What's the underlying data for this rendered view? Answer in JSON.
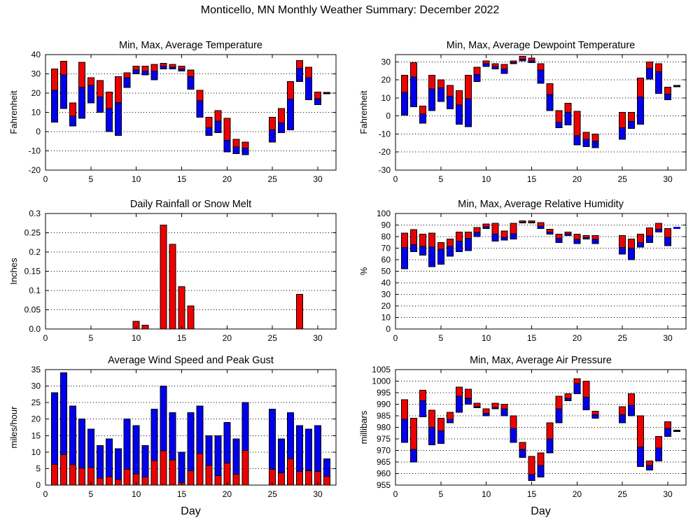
{
  "title": "Monticello, MN Monthly Weather Summary: December 2022",
  "colors": {
    "max_bar_red": "#ee0000",
    "min_bar_blue": "#0000ee",
    "dash_black": "#000000",
    "axis": "#000000",
    "background": "#ffffff"
  },
  "chart_data": [
    {
      "id": "temperature",
      "type": "bar",
      "bar_style": "min-avg-max range bars; blue = min to average, red = average to max",
      "title": "Min, Max, Average Temperature",
      "ylabel": "Fahrenheit",
      "xlabel": "",
      "ylim": [
        -20,
        40
      ],
      "yticks": [
        -20,
        -10,
        0,
        10,
        20,
        30,
        40
      ],
      "xlim": [
        0,
        32
      ],
      "xticks": [
        0,
        5,
        10,
        15,
        20,
        25,
        30
      ],
      "grid": true,
      "legend": "none",
      "days_min_avg_max": [
        [
          1,
          5,
          21.5,
          32.5
        ],
        [
          2,
          12,
          29.5,
          36.5
        ],
        [
          3,
          3,
          8,
          15
        ],
        [
          4,
          7,
          23,
          36
        ],
        [
          5,
          15,
          24,
          28
        ],
        [
          6,
          10,
          18,
          26.5
        ],
        [
          7,
          0,
          12,
          20.5
        ],
        [
          8,
          -2,
          15,
          28.5
        ],
        [
          9,
          23,
          28,
          30.5
        ],
        [
          10,
          30,
          32,
          34
        ],
        [
          11,
          29.5,
          31.5,
          34
        ],
        [
          12,
          27,
          31.5,
          35
        ],
        [
          13,
          32.5,
          34,
          35.5
        ],
        [
          14,
          32.5,
          33.5,
          35
        ],
        [
          15,
          31.5,
          32.5,
          34
        ],
        [
          16,
          22,
          28.5,
          32
        ],
        [
          17,
          7.5,
          16,
          21.5
        ],
        [
          18,
          -2,
          2,
          7.5
        ],
        [
          19,
          -0.5,
          5.5,
          11
        ],
        [
          20,
          -10.5,
          -4.5,
          7
        ],
        [
          21,
          -11.5,
          -8,
          -4
        ],
        [
          22,
          -12,
          -8.5,
          -5.5
        ],
        [
          25,
          -5.5,
          1,
          7.5
        ],
        [
          26,
          -0.5,
          4.5,
          12
        ],
        [
          27,
          1,
          17,
          26
        ],
        [
          28,
          26,
          33,
          37
        ],
        [
          29,
          16.5,
          28,
          33.5
        ],
        [
          30,
          14,
          17,
          20.5
        ]
      ],
      "dash_marks": [
        [
          31,
          20,
          "black"
        ]
      ],
      "missing_days": [
        23,
        24
      ]
    },
    {
      "id": "dewpoint",
      "type": "bar",
      "bar_style": "min-avg-max range bars; blue = min to average, red = average to max",
      "title": "Min, Max, Average Dewpoint Temperature",
      "ylabel": "Fahrenheit",
      "xlabel": "",
      "ylim": [
        -30,
        34
      ],
      "yticks": [
        -30,
        -20,
        -10,
        0,
        10,
        20,
        30
      ],
      "xlim": [
        0,
        32
      ],
      "xticks": [
        0,
        5,
        10,
        15,
        20,
        25,
        30
      ],
      "grid": true,
      "legend": "none",
      "days_min_avg_max": [
        [
          1,
          0.5,
          13,
          22.5
        ],
        [
          2,
          5,
          21.5,
          29.5
        ],
        [
          3,
          -4,
          1,
          5.5
        ],
        [
          4,
          3,
          15,
          22.5
        ],
        [
          5,
          8,
          15.5,
          20
        ],
        [
          6,
          4,
          11,
          17
        ],
        [
          7,
          -4.5,
          6,
          14
        ],
        [
          8,
          -6,
          9.5,
          22.5
        ],
        [
          9,
          19,
          23,
          27
        ],
        [
          10,
          27.5,
          29,
          30.5
        ],
        [
          11,
          26,
          27.5,
          29
        ],
        [
          12,
          23.5,
          26,
          28.5
        ],
        [
          13,
          29,
          29.5,
          30.5
        ],
        [
          14,
          30.5,
          31.5,
          33
        ],
        [
          15,
          29.5,
          30.5,
          32
        ],
        [
          16,
          18,
          25.5,
          29
        ],
        [
          17,
          3,
          12,
          18
        ],
        [
          18,
          -6.5,
          -3.5,
          3
        ],
        [
          19,
          -5,
          2,
          7
        ],
        [
          20,
          -16,
          -11,
          2.5
        ],
        [
          21,
          -17,
          -13,
          -9
        ],
        [
          22,
          -17.5,
          -14,
          -10
        ],
        [
          25,
          -13,
          -6.5,
          2
        ],
        [
          26,
          -7,
          -3,
          2
        ],
        [
          27,
          -4.5,
          10.5,
          21
        ],
        [
          28,
          20.5,
          26.5,
          30
        ],
        [
          29,
          12.5,
          24.5,
          29
        ],
        [
          30,
          9,
          12,
          16
        ]
      ],
      "dash_marks": [
        [
          31,
          16.5,
          "black"
        ]
      ],
      "missing_days": [
        23,
        24
      ]
    },
    {
      "id": "rain",
      "type": "bar",
      "bar_style": "single red bars from zero",
      "title": "Daily Rainfall or Snow Melt",
      "ylabel": "Inches",
      "xlabel": "",
      "ylim": [
        0,
        0.3
      ],
      "yticks": [
        0,
        0.05,
        0.1,
        0.15,
        0.2,
        0.25,
        0.3
      ],
      "ytick_labels": [
        "0.0",
        "0.05",
        "0.1",
        "0.15",
        "0.2",
        "0.25",
        "0.3"
      ],
      "xlim": [
        0,
        32
      ],
      "xticks": [
        0,
        5,
        10,
        15,
        20,
        25,
        30
      ],
      "grid": true,
      "legend": "none",
      "days_value": [
        [
          10,
          0.02
        ],
        [
          11,
          0.01
        ],
        [
          13,
          0.27
        ],
        [
          14,
          0.22
        ],
        [
          15,
          0.11
        ],
        [
          16,
          0.06
        ],
        [
          28,
          0.09
        ]
      ],
      "missing_days": [
        23,
        24
      ]
    },
    {
      "id": "humidity",
      "type": "bar",
      "bar_style": "min-avg-max range bars; blue = min to average, red = average to max",
      "title": "Min, Max, Average Relative Humidity",
      "ylabel": "%",
      "xlabel": "",
      "ylim": [
        0,
        100
      ],
      "yticks": [
        0,
        10,
        20,
        30,
        40,
        50,
        60,
        70,
        80,
        90,
        100
      ],
      "xlim": [
        0,
        32
      ],
      "xticks": [
        0,
        5,
        10,
        15,
        20,
        25,
        30
      ],
      "grid": true,
      "legend": "none",
      "days_min_avg_max": [
        [
          1,
          52,
          70.5,
          83
        ],
        [
          2,
          67,
          73,
          86
        ],
        [
          3,
          64,
          71.5,
          82
        ],
        [
          4,
          54,
          71,
          83
        ],
        [
          5,
          56,
          69,
          75
        ],
        [
          6,
          63,
          71.5,
          78
        ],
        [
          7,
          67,
          76,
          84
        ],
        [
          8,
          68,
          78.5,
          84
        ],
        [
          9,
          80,
          83.5,
          88
        ],
        [
          10,
          87,
          88.5,
          91
        ],
        [
          11,
          76,
          82,
          91.5
        ],
        [
          12,
          77,
          79.5,
          85
        ],
        [
          13,
          78,
          82.5,
          91.5
        ],
        [
          14,
          92,
          92.3,
          93.5
        ],
        [
          15,
          92,
          92.3,
          93.5
        ],
        [
          16,
          87,
          89,
          92
        ],
        [
          17,
          82,
          84,
          86.5
        ],
        [
          18,
          75,
          78.5,
          82
        ],
        [
          19,
          81,
          82.5,
          84
        ],
        [
          20,
          74,
          77.5,
          82
        ],
        [
          21,
          78,
          79,
          81
        ],
        [
          22,
          74,
          77.5,
          81
        ],
        [
          25,
          65,
          70.5,
          81
        ],
        [
          26,
          60,
          70,
          78
        ],
        [
          27,
          71,
          75,
          82
        ],
        [
          28,
          75,
          80.5,
          87.5
        ],
        [
          29,
          84,
          86.5,
          91.5
        ],
        [
          30,
          72,
          79.5,
          87
        ]
      ],
      "dash_marks": [
        [
          31,
          87.5,
          "blue"
        ]
      ],
      "missing_days": [
        23,
        24
      ]
    },
    {
      "id": "wind",
      "type": "bar",
      "bar_style": "stacked bars from zero; red = average wind speed, blue = up to peak gust",
      "title": "Average Wind Speed and Peak Gust",
      "ylabel": "miles/hour",
      "xlabel": "Day",
      "ylim": [
        0,
        35
      ],
      "yticks": [
        0,
        5,
        10,
        15,
        20,
        25,
        30,
        35
      ],
      "xlim": [
        0,
        32
      ],
      "xticks": [
        0,
        5,
        10,
        15,
        20,
        25,
        30
      ],
      "grid": true,
      "legend": "none",
      "days_avg_gust": [
        [
          1,
          6.3,
          28
        ],
        [
          2,
          9.2,
          34
        ],
        [
          3,
          6.2,
          24
        ],
        [
          4,
          5.1,
          20
        ],
        [
          5,
          5.3,
          17
        ],
        [
          6,
          2.1,
          12
        ],
        [
          7,
          2.5,
          14
        ],
        [
          8,
          1.7,
          11
        ],
        [
          9,
          4.8,
          20
        ],
        [
          10,
          3.4,
          18
        ],
        [
          11,
          2.4,
          12
        ],
        [
          12,
          7.4,
          23
        ],
        [
          13,
          10.4,
          30
        ],
        [
          14,
          7.6,
          22
        ],
        [
          15,
          0.7,
          10
        ],
        [
          16,
          4.3,
          22
        ],
        [
          17,
          9.5,
          24
        ],
        [
          18,
          5.9,
          15
        ],
        [
          19,
          2.9,
          15
        ],
        [
          20,
          6.7,
          19
        ],
        [
          21,
          3.3,
          14
        ],
        [
          22,
          10.5,
          25
        ],
        [
          25,
          4.8,
          23
        ],
        [
          26,
          3.7,
          14
        ],
        [
          27,
          8,
          22
        ],
        [
          28,
          4.1,
          18
        ],
        [
          29,
          4.3,
          17
        ],
        [
          30,
          4.1,
          18
        ],
        [
          31,
          2.6,
          8
        ]
      ],
      "missing_days": [
        23,
        24
      ]
    },
    {
      "id": "pressure",
      "type": "bar",
      "bar_style": "min-avg-max range bars; blue = min to average, red = average to max",
      "title": "Min, Max, Average Air Pressure",
      "ylabel": "millibars",
      "xlabel": "Day",
      "ylim": [
        955,
        1005
      ],
      "yticks": [
        955,
        960,
        965,
        970,
        975,
        980,
        985,
        990,
        995,
        1000,
        1005
      ],
      "xlim": [
        0,
        32
      ],
      "xticks": [
        0,
        5,
        10,
        15,
        20,
        25,
        30
      ],
      "grid": true,
      "legend": "none",
      "days_min_avg_max": [
        [
          1,
          973.5,
          983.5,
          992
        ],
        [
          2,
          965,
          970.5,
          984
        ],
        [
          3,
          984.5,
          991.5,
          996
        ],
        [
          4,
          972.5,
          980,
          987.5
        ],
        [
          5,
          973,
          978.5,
          984
        ],
        [
          6,
          982,
          983.5,
          986.5
        ],
        [
          7,
          986.5,
          993.5,
          997.5
        ],
        [
          8,
          990,
          992.5,
          996.5
        ],
        [
          9,
          988.5,
          989,
          990.5
        ],
        [
          10,
          985,
          986,
          988
        ],
        [
          11,
          988,
          988.5,
          990.5
        ],
        [
          12,
          985,
          988,
          990
        ],
        [
          13,
          973.5,
          979.5,
          985
        ],
        [
          14,
          967,
          970.5,
          973.5
        ],
        [
          15,
          957,
          959.5,
          967.5
        ],
        [
          16,
          958.5,
          963.5,
          969
        ],
        [
          17,
          969,
          975,
          982
        ],
        [
          18,
          982,
          988,
          993.5
        ],
        [
          19,
          991.5,
          992.5,
          994.5
        ],
        [
          20,
          994.5,
          999,
          1001
        ],
        [
          21,
          987.5,
          993,
          1000
        ],
        [
          22,
          984,
          985.5,
          987
        ],
        [
          25,
          982,
          985.5,
          989
        ],
        [
          26,
          985,
          989.5,
          994.5
        ],
        [
          27,
          963,
          971.5,
          985
        ],
        [
          28,
          961.5,
          963.5,
          965.5
        ],
        [
          29,
          965.5,
          971,
          976
        ],
        [
          30,
          976,
          979.5,
          982.5
        ]
      ],
      "dash_marks": [
        [
          31,
          978.5,
          "black"
        ]
      ],
      "missing_days": [
        23,
        24
      ]
    }
  ]
}
